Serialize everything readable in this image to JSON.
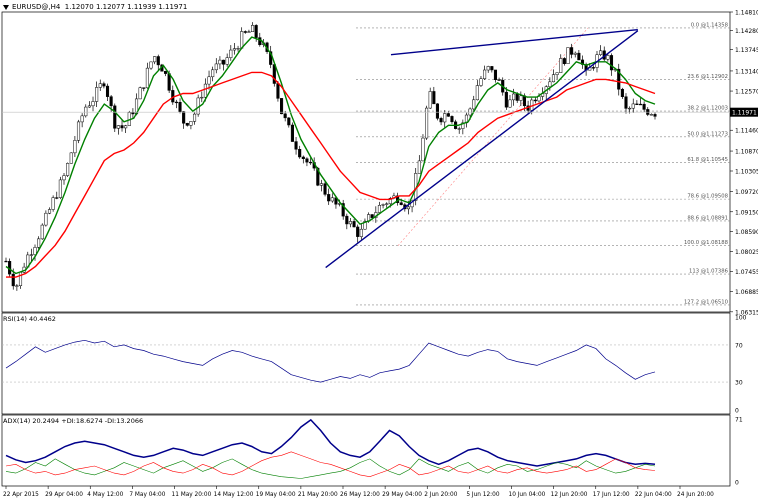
{
  "header": {
    "symbol": "EURUSD@,H4",
    "open": "1.12070",
    "high": "1.12077",
    "low": "1.11939",
    "close": "1.11971"
  },
  "rsi_header": "RSI(14) 40.4462",
  "adx_header": "ADX(14) 20.2494 +DI:18.6274 -DI:13.2066",
  "current_price": "1.11971",
  "chart_data": [
    {
      "type": "line",
      "panel": "price",
      "ylim": [
        1.0631,
        1.1481
      ],
      "y_ticks": [
        "1.14810",
        "1.14280",
        "1.13745",
        "1.13140",
        "1.12570",
        "1.12030",
        "1.11460",
        "1.10870",
        "1.10305",
        "1.09720",
        "1.09150",
        "1.08590",
        "1.08025",
        "1.07455",
        "1.06885",
        "1.06315"
      ],
      "x_ticks": [
        "22 Apr 2015",
        "29 Apr 04:00",
        "4 May 12:00",
        "7 May 04:00",
        "11 May 20:00",
        "14 May 12:00",
        "19 May 04:00",
        "21 May 20:00",
        "26 May 12:00",
        "29 May 04:00",
        "2 Jun 20:00",
        "5 Jun 12:00",
        "10 Jun 04:00",
        "12 Jun 20:00",
        "17 Jun 12:00",
        "22 Jun 04:00",
        "24 Jun 20:00"
      ],
      "fibonacci": [
        {
          "label": "0.0",
          "value": 1.14358
        },
        {
          "label": "23.6",
          "value": 1.12902
        },
        {
          "label": "38.2",
          "value": 1.12003
        },
        {
          "label": "50.0",
          "value": 1.11273
        },
        {
          "label": "61.8",
          "value": 1.10545
        },
        {
          "label": "78.6",
          "value": 1.09508
        },
        {
          "label": "88.6",
          "value": 1.08891
        },
        {
          "label": "100.0",
          "value": 1.08188
        },
        {
          "label": "113",
          "value": 1.07386
        },
        {
          "label": "127.2",
          "value": 1.0651
        }
      ],
      "close_series": [
        1.0775,
        1.07,
        1.078,
        1.083,
        1.089,
        1.096,
        1.102,
        1.112,
        1.121,
        1.124,
        1.129,
        1.117,
        1.115,
        1.121,
        1.128,
        1.136,
        1.132,
        1.124,
        1.117,
        1.118,
        1.126,
        1.132,
        1.133,
        1.137,
        1.141,
        1.143,
        1.139,
        1.133,
        1.12,
        1.113,
        1.108,
        1.104,
        1.099,
        1.095,
        1.092,
        1.088,
        1.085,
        1.09,
        1.093,
        1.095,
        1.096,
        1.092,
        1.105,
        1.125,
        1.118,
        1.12,
        1.115,
        1.119,
        1.128,
        1.132,
        1.129,
        1.122,
        1.124,
        1.121,
        1.125,
        1.128,
        1.132,
        1.136,
        1.138,
        1.13,
        1.135,
        1.136,
        1.13,
        1.12,
        1.1215,
        1.1205,
        1.1197
      ],
      "series": [
        {
          "name": "",
          "color": "#008000",
          "values": [
            1.076,
            1.074,
            1.075,
            1.079,
            1.084,
            1.09,
            1.097,
            1.105,
            1.112,
            1.118,
            1.122,
            1.12,
            1.117,
            1.118,
            1.123,
            1.13,
            1.133,
            1.129,
            1.123,
            1.12,
            1.122,
            1.127,
            1.13,
            1.134,
            1.138,
            1.141,
            1.14,
            1.136,
            1.128,
            1.119,
            1.112,
            1.107,
            1.102,
            1.098,
            1.094,
            1.091,
            1.088,
            1.089,
            1.091,
            1.093,
            1.095,
            1.094,
            1.1,
            1.11,
            1.114,
            1.116,
            1.116,
            1.117,
            1.122,
            1.126,
            1.128,
            1.126,
            1.125,
            1.124,
            1.124,
            1.126,
            1.128,
            1.131,
            1.134,
            1.133,
            1.134,
            1.134,
            1.132,
            1.129,
            1.125,
            1.123,
            1.122
          ]
        },
        {
          "name": "",
          "color": "#ff0000",
          "values": [
            1.073,
            1.073,
            1.074,
            1.076,
            1.079,
            1.082,
            1.086,
            1.091,
            1.096,
            1.101,
            1.106,
            1.108,
            1.109,
            1.111,
            1.114,
            1.118,
            1.122,
            1.124,
            1.125,
            1.125,
            1.126,
            1.127,
            1.128,
            1.129,
            1.13,
            1.131,
            1.131,
            1.13,
            1.127,
            1.123,
            1.119,
            1.115,
            1.111,
            1.107,
            1.103,
            1.1,
            1.097,
            1.096,
            1.095,
            1.095,
            1.096,
            1.096,
            1.099,
            1.103,
            1.105,
            1.107,
            1.109,
            1.111,
            1.114,
            1.116,
            1.118,
            1.119,
            1.12,
            1.121,
            1.122,
            1.123,
            1.124,
            1.126,
            1.127,
            1.128,
            1.129,
            1.129,
            1.1285,
            1.128,
            1.127,
            1.126,
            1.125
          ]
        }
      ],
      "trendlines": [
        {
          "color": "#00008b",
          "from": [
            0.4446,
            1.0757
          ],
          "to": [
            0.8734,
            1.1428
          ]
        },
        {
          "color": "#00008b",
          "from": [
            0.5343,
            1.136
          ],
          "to": [
            0.8734,
            1.1431
          ]
        }
      ]
    },
    {
      "type": "line",
      "panel": "rsi",
      "ylim": [
        0,
        100
      ],
      "y_ticks": [
        "100",
        "70",
        "30",
        "0"
      ],
      "series": [
        {
          "name": "",
          "color": "#00008b",
          "values": [
            45,
            52,
            60,
            68,
            62,
            66,
            70,
            73,
            75,
            72,
            74,
            68,
            70,
            66,
            64,
            60,
            58,
            55,
            52,
            50,
            48,
            55,
            60,
            64,
            62,
            58,
            55,
            52,
            45,
            38,
            35,
            32,
            30,
            33,
            36,
            34,
            38,
            35,
            40,
            42,
            44,
            48,
            60,
            72,
            68,
            64,
            60,
            58,
            62,
            65,
            63,
            55,
            52,
            50,
            48,
            52,
            56,
            60,
            64,
            70,
            66,
            55,
            48,
            40,
            33,
            38,
            41
          ]
        }
      ]
    },
    {
      "type": "line",
      "panel": "adx",
      "ylim": [
        0,
        71
      ],
      "y_ticks": [
        "71",
        "0"
      ],
      "series": [
        {
          "name": "",
          "color": "#00008b",
          "values": [
            30,
            25,
            22,
            24,
            28,
            34,
            40,
            44,
            46,
            44,
            42,
            38,
            34,
            30,
            28,
            30,
            34,
            38,
            36,
            32,
            30,
            34,
            38,
            42,
            44,
            40,
            34,
            32,
            40,
            50,
            62,
            70,
            58,
            44,
            34,
            30,
            28,
            34,
            46,
            58,
            52,
            40,
            30,
            24,
            20,
            24,
            30,
            36,
            38,
            34,
            28,
            24,
            22,
            20,
            18,
            20,
            22,
            24,
            26,
            30,
            32,
            30,
            26,
            22,
            20,
            21,
            20
          ]
        },
        {
          "name": "",
          "color": "#008000",
          "values": [
            12,
            10,
            15,
            22,
            18,
            26,
            20,
            14,
            10,
            8,
            12,
            16,
            22,
            18,
            14,
            10,
            16,
            20,
            24,
            18,
            12,
            16,
            22,
            26,
            20,
            14,
            10,
            8,
            6,
            5,
            4,
            6,
            8,
            10,
            12,
            16,
            22,
            26,
            18,
            12,
            8,
            14,
            26,
            20,
            16,
            12,
            18,
            22,
            14,
            10,
            16,
            20,
            18,
            12,
            14,
            18,
            22,
            20,
            16,
            24,
            18,
            14,
            10,
            12,
            16,
            20,
            18
          ]
        },
        {
          "name": "",
          "color": "#ff0000",
          "values": [
            18,
            20,
            14,
            10,
            12,
            8,
            10,
            14,
            16,
            18,
            14,
            10,
            8,
            12,
            18,
            22,
            16,
            12,
            10,
            14,
            20,
            16,
            10,
            8,
            12,
            18,
            24,
            28,
            30,
            34,
            30,
            26,
            22,
            20,
            16,
            12,
            8,
            6,
            10,
            14,
            20,
            16,
            8,
            10,
            14,
            18,
            12,
            10,
            14,
            18,
            12,
            10,
            14,
            16,
            12,
            10,
            12,
            14,
            18,
            12,
            14,
            20,
            26,
            22,
            16,
            14,
            13
          ]
        }
      ]
    }
  ]
}
